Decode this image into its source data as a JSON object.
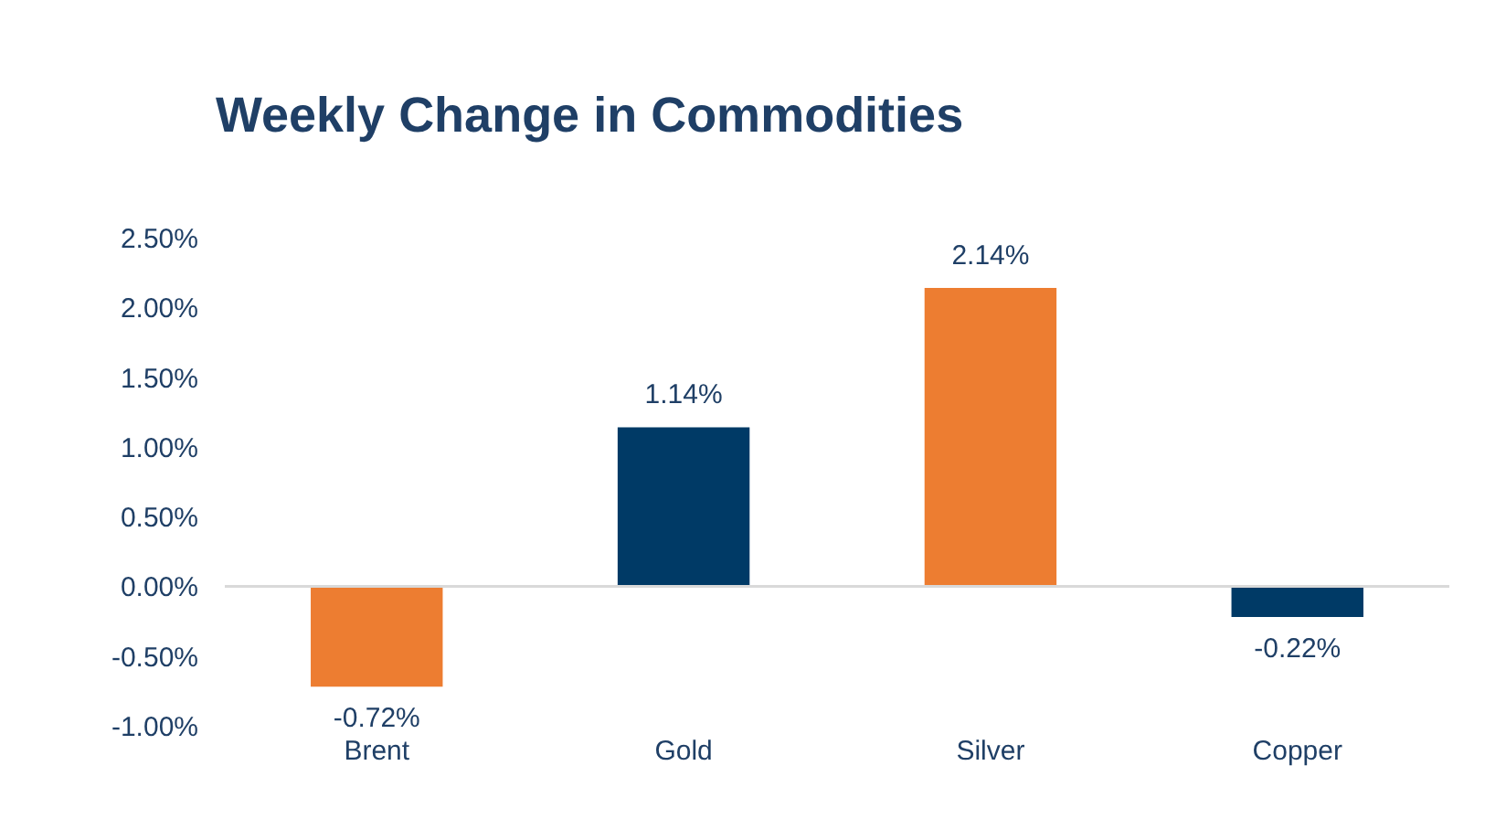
{
  "chart_data": {
    "type": "bar",
    "title": "Weekly Change in Commodities",
    "categories": [
      "Brent",
      "Gold",
      "Silver",
      "Copper"
    ],
    "values": [
      -0.72,
      1.14,
      2.14,
      -0.22
    ],
    "colors": [
      "#ed7d31",
      "#003a66",
      "#ed7d31",
      "#003a66"
    ],
    "value_labels": [
      "-0.72%",
      "1.14%",
      "2.14%",
      "-0.22%"
    ],
    "ylim": [
      -1,
      2.5
    ],
    "yticks": [
      {
        "value": -1,
        "label": "-1.00%"
      },
      {
        "value": -0.5,
        "label": "-0.50%"
      },
      {
        "value": 0,
        "label": "0.00%"
      },
      {
        "value": 0.5,
        "label": "0.50%"
      },
      {
        "value": 1,
        "label": "1.00%"
      },
      {
        "value": 1.5,
        "label": "1.50%"
      },
      {
        "value": 2,
        "label": "2.00%"
      },
      {
        "value": 2.5,
        "label": "2.50%"
      }
    ],
    "ylabel": null
  }
}
